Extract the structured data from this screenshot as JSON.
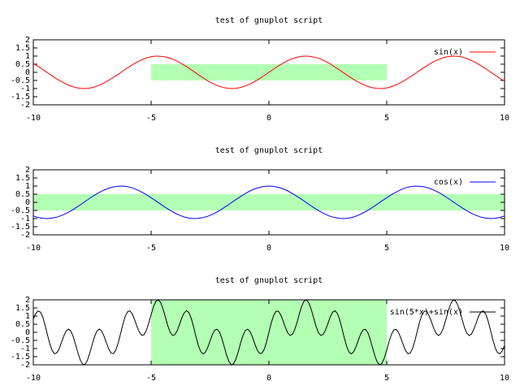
{
  "chart_data": [
    {
      "type": "line",
      "title": "test of gnuplot script",
      "legend": "top right",
      "x": [
        -10,
        -9.8,
        -9.6,
        -9.4,
        -9.2,
        -9,
        -8.8,
        -8.6,
        -8.4,
        -8.2,
        -8,
        -7.8,
        -7.6,
        -7.4,
        -7.2,
        -7,
        -6.8,
        -6.6,
        -6.4,
        -6.2,
        -6,
        -5.8,
        -5.6,
        -5.4,
        -5.2,
        -5,
        -4.8,
        -4.6,
        -4.4,
        -4.2,
        -4,
        -3.8,
        -3.6,
        -3.4,
        -3.2,
        -3,
        -2.8,
        -2.6,
        -2.4,
        -2.2,
        -2,
        -1.8,
        -1.6,
        -1.4,
        -1.2,
        -1,
        -0.8,
        -0.6,
        -0.4,
        -0.2,
        0,
        0.2,
        0.4,
        0.6,
        0.8,
        1,
        1.2,
        1.4,
        1.6,
        1.8,
        2,
        2.2,
        2.4,
        2.6,
        2.8,
        3,
        3.2,
        3.4,
        3.6,
        3.8,
        4,
        4.2,
        4.4,
        4.6,
        4.8,
        5,
        5.2,
        5.4,
        5.6,
        5.8,
        6,
        6.2,
        6.4,
        6.6,
        6.8,
        7,
        7.2,
        7.4,
        7.6,
        7.8,
        8,
        8.2,
        8.4,
        8.6,
        8.8,
        9,
        9.2,
        9.4,
        9.6,
        9.8,
        10
      ],
      "series": [
        {
          "name": "sin(x)",
          "color": "#ff0000",
          "values": [
            0.54,
            0.37,
            0.17,
            -0.02,
            -0.22,
            -0.41,
            -0.58,
            -0.73,
            -0.85,
            -0.94,
            -0.99,
            -1.0,
            -0.97,
            -0.9,
            -0.79,
            -0.66,
            -0.49,
            -0.31,
            -0.12,
            0.08,
            0.28,
            0.46,
            0.63,
            0.77,
            0.88,
            0.96,
            1.0,
            0.99,
            0.95,
            0.87,
            0.76,
            0.61,
            0.44,
            0.26,
            0.06,
            -0.14,
            -0.33,
            -0.52,
            -0.68,
            -0.81,
            -0.91,
            -0.97,
            -1.0,
            -0.99,
            -0.93,
            -0.84,
            -0.72,
            -0.56,
            -0.39,
            -0.2,
            0,
            0.2,
            0.39,
            0.56,
            0.72,
            0.84,
            0.93,
            0.99,
            1.0,
            0.97,
            0.91,
            0.81,
            0.68,
            0.52,
            0.33,
            0.14,
            -0.06,
            -0.26,
            -0.44,
            -0.61,
            -0.76,
            -0.87,
            -0.95,
            -0.99,
            -1.0,
            -0.96,
            -0.88,
            -0.77,
            -0.63,
            -0.46,
            -0.28,
            -0.08,
            0.12,
            0.31,
            0.49,
            0.66,
            0.79,
            0.9,
            0.97,
            1.0,
            0.99,
            0.94,
            0.85,
            0.73,
            0.58,
            0.41,
            0.22,
            0.02,
            -0.17,
            -0.37,
            -0.54
          ]
        }
      ],
      "rects": [
        {
          "x": [
            -5,
            5
          ],
          "y": [
            -0.5,
            0.5
          ],
          "color": "#b3ffb3"
        }
      ],
      "xlim": [
        -10,
        10
      ],
      "xticks": [
        -10,
        -5,
        0,
        5,
        10
      ],
      "ylim": [
        -2,
        2
      ],
      "yticks": [
        -2,
        -1.5,
        -1,
        -0.5,
        0,
        0.5,
        1,
        1.5,
        2
      ]
    },
    {
      "type": "line",
      "title": "test of gnuplot script",
      "legend": "top right",
      "x": [
        -10,
        -9.8,
        -9.6,
        -9.4,
        -9.2,
        -9,
        -8.8,
        -8.6,
        -8.4,
        -8.2,
        -8,
        -7.8,
        -7.6,
        -7.4,
        -7.2,
        -7,
        -6.8,
        -6.6,
        -6.4,
        -6.2,
        -6,
        -5.8,
        -5.6,
        -5.4,
        -5.2,
        -5,
        -4.8,
        -4.6,
        -4.4,
        -4.2,
        -4,
        -3.8,
        -3.6,
        -3.4,
        -3.2,
        -3,
        -2.8,
        -2.6,
        -2.4,
        -2.2,
        -2,
        -1.8,
        -1.6,
        -1.4,
        -1.2,
        -1,
        -0.8,
        -0.6,
        -0.4,
        -0.2,
        0,
        0.2,
        0.4,
        0.6,
        0.8,
        1,
        1.2,
        1.4,
        1.6,
        1.8,
        2,
        2.2,
        2.4,
        2.6,
        2.8,
        3,
        3.2,
        3.4,
        3.6,
        3.8,
        4,
        4.2,
        4.4,
        4.6,
        4.8,
        5,
        5.2,
        5.4,
        5.6,
        5.8,
        6,
        6.2,
        6.4,
        6.6,
        6.8,
        7,
        7.2,
        7.4,
        7.6,
        7.8,
        8,
        8.2,
        8.4,
        8.6,
        8.8,
        9,
        9.2,
        9.4,
        9.6,
        9.8,
        10
      ],
      "series": [
        {
          "name": "cos(x)",
          "color": "#0000ff",
          "values": [
            -0.84,
            -0.93,
            -0.98,
            -1.0,
            -0.97,
            -0.91,
            -0.81,
            -0.68,
            -0.52,
            -0.34,
            -0.15,
            0.05,
            0.25,
            0.44,
            0.61,
            0.75,
            0.87,
            0.95,
            0.99,
            1.0,
            0.96,
            0.89,
            0.78,
            0.63,
            0.47,
            0.28,
            0.09,
            -0.11,
            -0.31,
            -0.49,
            -0.65,
            -0.79,
            -0.9,
            -0.97,
            -1.0,
            -0.99,
            -0.94,
            -0.86,
            -0.74,
            -0.59,
            -0.42,
            -0.23,
            -0.03,
            0.17,
            0.36,
            0.54,
            0.7,
            0.83,
            0.92,
            0.98,
            1.0,
            0.98,
            0.92,
            0.83,
            0.7,
            0.54,
            0.36,
            0.17,
            -0.03,
            -0.23,
            -0.42,
            -0.59,
            -0.74,
            -0.86,
            -0.94,
            -0.99,
            -1.0,
            -0.97,
            -0.9,
            -0.79,
            -0.65,
            -0.49,
            -0.31,
            -0.11,
            0.09,
            0.28,
            0.47,
            0.63,
            0.78,
            0.89,
            0.96,
            1.0,
            0.99,
            0.95,
            0.87,
            0.75,
            0.61,
            0.44,
            0.25,
            0.05,
            -0.15,
            -0.34,
            -0.52,
            -0.68,
            -0.81,
            -0.91,
            -0.97,
            -1.0,
            -0.98,
            -0.93,
            -0.84
          ]
        }
      ],
      "rects": [
        {
          "x": [
            -10,
            10
          ],
          "y": [
            -0.5,
            0.5
          ],
          "color": "#b3ffb3"
        }
      ],
      "xlim": [
        -10,
        10
      ],
      "xticks": [
        -10,
        -5,
        0,
        5,
        10
      ],
      "ylim": [
        -2,
        2
      ],
      "yticks": [
        -2,
        -1.5,
        -1,
        -0.5,
        0,
        0.5,
        1,
        1.5,
        2
      ]
    },
    {
      "type": "line",
      "title": "test of gnuplot script",
      "legend": "top right",
      "x": [
        -10,
        -9.9,
        -9.8,
        -9.7,
        -9.6,
        -9.5,
        -9.4,
        -9.3,
        -9.2,
        -9.1,
        -9,
        -8.9,
        -8.8,
        -8.7,
        -8.6,
        -8.5,
        -8.4,
        -8.3,
        -8.2,
        -8.1,
        -8,
        -7.9,
        -7.8,
        -7.7,
        -7.6,
        -7.5,
        -7.4,
        -7.3,
        -7.2,
        -7.1,
        -7,
        -6.9,
        -6.8,
        -6.7,
        -6.6,
        -6.5,
        -6.4,
        -6.3,
        -6.2,
        -6.1,
        -6,
        -5.9,
        -5.8,
        -5.7,
        -5.6,
        -5.5,
        -5.4,
        -5.3,
        -5.2,
        -5.1,
        -5,
        -4.9,
        -4.8,
        -4.7,
        -4.6,
        -4.5,
        -4.4,
        -4.3,
        -4.2,
        -4.1,
        -4,
        -3.9,
        -3.8,
        -3.7,
        -3.6,
        -3.5,
        -3.4,
        -3.3,
        -3.2,
        -3.1,
        -3,
        -2.9,
        -2.8,
        -2.7,
        -2.6,
        -2.5,
        -2.4,
        -2.3,
        -2.2,
        -2.1,
        -2,
        -1.9,
        -1.8,
        -1.7,
        -1.6,
        -1.5,
        -1.4,
        -1.3,
        -1.2,
        -1.1,
        -1,
        -0.9,
        -0.8,
        -0.7,
        -0.6,
        -0.5,
        -0.4,
        -0.3,
        -0.2,
        -0.1,
        0,
        0.1,
        0.2,
        0.3,
        0.4,
        0.5,
        0.6,
        0.7,
        0.8,
        0.9,
        1,
        1.1,
        1.2,
        1.3,
        1.4,
        1.5,
        1.6,
        1.7,
        1.8,
        1.9,
        2,
        2.1,
        2.2,
        2.3,
        2.4,
        2.5,
        2.6,
        2.7,
        2.8,
        2.9,
        3,
        3.1,
        3.2,
        3.3,
        3.4,
        3.5,
        3.6,
        3.7,
        3.8,
        3.9,
        4,
        4.1,
        4.2,
        4.3,
        4.4,
        4.5,
        4.6,
        4.7,
        4.8,
        4.9,
        5,
        5.1,
        5.2,
        5.3,
        5.4,
        5.5,
        5.6,
        5.7,
        5.8,
        5.9,
        6,
        6.1,
        6.2,
        6.3,
        6.4,
        6.5,
        6.6,
        6.7,
        6.8,
        6.9,
        7,
        7.1,
        7.2,
        7.3,
        7.4,
        7.5,
        7.6,
        7.7,
        7.8,
        7.9,
        8,
        8.1,
        8.2,
        8.3,
        8.4,
        8.5,
        8.6,
        8.7,
        8.8,
        8.9,
        9,
        9.1,
        9.2,
        9.3,
        9.4,
        9.5,
        9.6,
        9.7,
        9.8,
        9.9,
        10
      ],
      "series": [
        {
          "name": "sin(5*x)+sin(x)",
          "color": "#000000",
          "values": [
            0.81,
            1.15,
            1.32,
            1.25,
            0.94,
            0.44,
            -0.15,
            -0.71,
            -1.13,
            -1.32,
            -1.26,
            -1.0,
            -0.6,
            -0.2,
            0.1,
            0.2,
            0.06,
            -0.29,
            -0.78,
            -1.3,
            -1.73,
            -1.97,
            -1.96,
            -1.71,
            -1.26,
            -0.74,
            -0.26,
            0.08,
            0.2,
            0.08,
            -0.23,
            -0.64,
            -1.02,
            -1.28,
            -1.31,
            -1.1,
            -0.67,
            -0.1,
            0.49,
            0.98,
            1.27,
            1.32,
            1.13,
            0.77,
            0.36,
            0.01,
            -0.18,
            -0.15,
            0.12,
            0.57,
            1.09,
            1.57,
            1.9,
            2.0,
            1.84,
            1.47,
            0.96,
            0.44,
            0.03,
            -0.18,
            -0.16,
            0.08,
            0.46,
            0.87,
            1.19,
            1.33,
            1.22,
            0.87,
            0.35,
            -0.25,
            -0.79,
            -1.17,
            -1.33,
            -1.23,
            -0.94,
            -0.53,
            -0.14,
            0.13,
            0.19,
            0.02,
            -0.37,
            -0.87,
            -1.39,
            -1.79,
            -1.99,
            -1.94,
            -1.64,
            -1.18,
            -0.65,
            -0.19,
            0.12,
            0.19,
            0.04,
            -0.29,
            -0.71,
            -1.08,
            -1.3,
            -1.29,
            -1.04,
            -0.58,
            0,
            0.58,
            1.04,
            1.29,
            1.3,
            1.08,
            0.71,
            0.29,
            -0.04,
            -0.19,
            -0.12,
            0.19,
            0.65,
            1.18,
            1.64,
            1.94,
            1.99,
            1.79,
            1.39,
            0.87,
            0.37,
            -0.02,
            -0.19,
            -0.13,
            0.14,
            0.53,
            0.94,
            1.23,
            1.33,
            1.17,
            0.79,
            0.25,
            -0.35,
            -0.87,
            -1.22,
            -1.33,
            -1.19,
            -0.87,
            -0.46,
            -0.08,
            0.16,
            0.18,
            -0.03,
            -0.44,
            -0.96,
            -1.47,
            -1.84,
            -2.0,
            -1.9,
            -1.57,
            -1.09,
            -0.57,
            -0.12,
            0.15,
            0.18,
            -0.01,
            -0.36,
            -0.77,
            -1.13,
            -1.32,
            -1.27,
            -0.98,
            -0.49,
            0.1,
            0.67,
            1.1,
            1.31,
            1.28,
            1.02,
            0.64,
            0.23,
            -0.08,
            -0.2,
            -0.08,
            0.26,
            0.74,
            1.26,
            1.71,
            1.96,
            1.97,
            1.73,
            1.3,
            0.78,
            0.29,
            -0.06,
            -0.2,
            -0.1,
            0.2,
            0.6,
            1.0,
            1.26,
            1.32,
            1.13,
            0.71,
            0.15,
            -0.44,
            -0.94,
            -1.25,
            -1.32,
            -1.15,
            -0.81
          ]
        }
      ],
      "rects": [
        {
          "x": [
            -5,
            5
          ],
          "y": [
            -2,
            2
          ],
          "color": "#b3ffb3"
        }
      ],
      "xlim": [
        -10,
        10
      ],
      "xticks": [
        -10,
        -5,
        0,
        5,
        10
      ],
      "ylim": [
        -2,
        2
      ],
      "yticks": [
        -2,
        -1.5,
        -1,
        -0.5,
        0,
        0.5,
        1,
        1.5,
        2
      ]
    }
  ]
}
